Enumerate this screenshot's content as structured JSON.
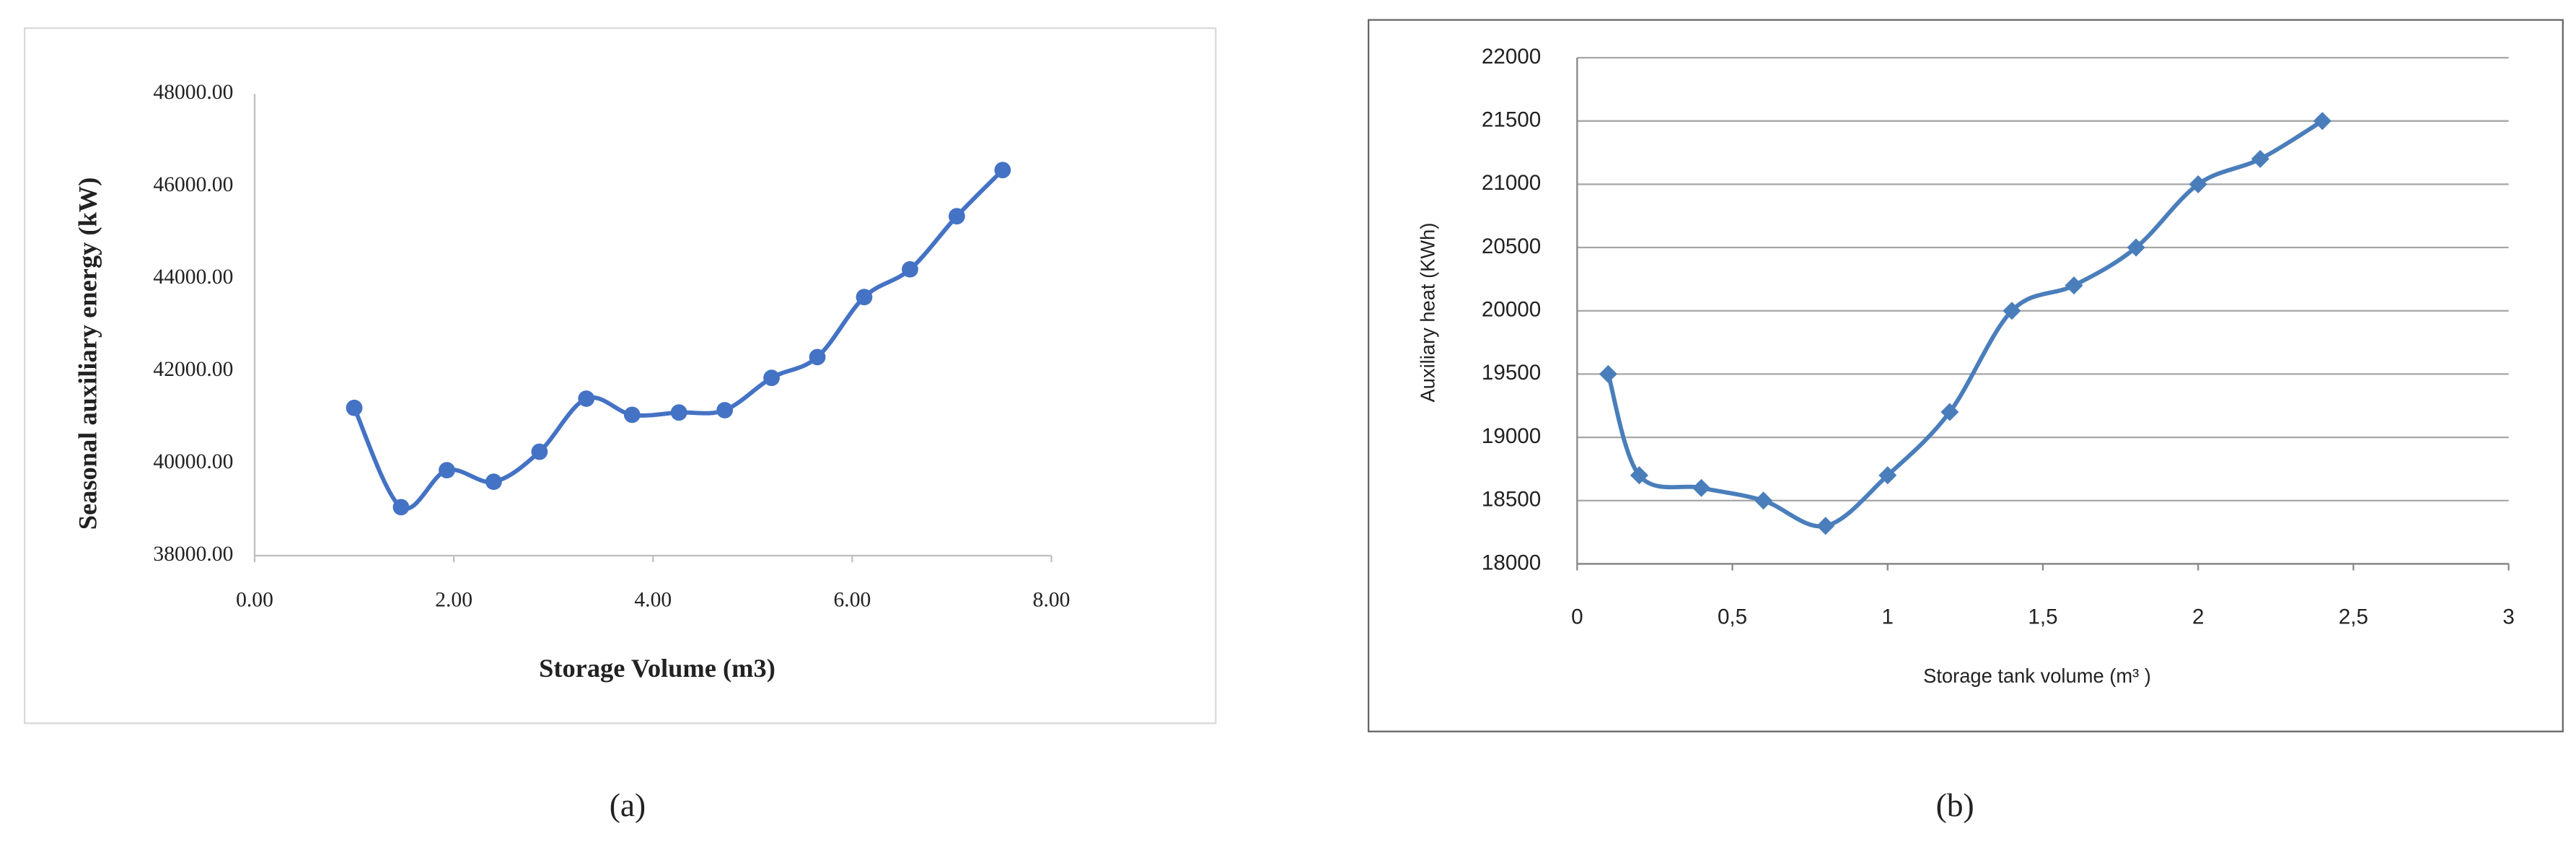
{
  "chart_data": [
    {
      "type": "line",
      "smooth": true,
      "marker": "circle",
      "grid": false,
      "color": "#4472c4",
      "x_label": "Storage Volume (m3)",
      "y_label": "Seasonal auxiliary energy (kW)",
      "caption": "(a)",
      "x": [
        1.0,
        1.47,
        1.93,
        2.4,
        2.86,
        3.33,
        3.79,
        4.26,
        4.72,
        5.19,
        5.65,
        6.12,
        6.58,
        7.05,
        7.51
      ],
      "values": [
        41200,
        39050,
        39850,
        39600,
        40250,
        41400,
        41050,
        41100,
        41150,
        41850,
        42300,
        43600,
        44200,
        45350,
        46350
      ],
      "xlim": [
        0,
        8
      ],
      "xticks": [
        {
          "value": 0,
          "label": "0.00"
        },
        {
          "value": 2,
          "label": "2.00"
        },
        {
          "value": 4,
          "label": "4.00"
        },
        {
          "value": 6,
          "label": "6.00"
        },
        {
          "value": 8,
          "label": "8.00"
        }
      ],
      "ylim": [
        38000,
        48000
      ],
      "yticks": [
        {
          "value": 38000,
          "label": "38000.00"
        },
        {
          "value": 40000,
          "label": "40000.00"
        },
        {
          "value": 42000,
          "label": "42000.00"
        },
        {
          "value": 44000,
          "label": "44000.00"
        },
        {
          "value": 46000,
          "label": "46000.00"
        },
        {
          "value": 48000,
          "label": "48000.00"
        }
      ]
    },
    {
      "type": "line",
      "smooth": true,
      "marker": "diamond",
      "grid": true,
      "color": "#4a7ebb",
      "x_label": "Storage tank volume (m³ )",
      "y_label": "Auxiliary heat  (KWh)",
      "caption": "(b)",
      "x": [
        0.1,
        0.2,
        0.4,
        0.6,
        0.8,
        1.0,
        1.2,
        1.4,
        1.6,
        1.8,
        2.0,
        2.2,
        2.4
      ],
      "values": [
        19500,
        18700,
        18600,
        18500,
        18300,
        18700,
        19200,
        20000,
        20200,
        20500,
        21000,
        21200,
        21500
      ],
      "xlim": [
        0,
        3
      ],
      "xticks": [
        0,
        {
          "value": 0.5,
          "label": "0,5"
        },
        1,
        {
          "value": 1.5,
          "label": "1,5"
        },
        2,
        {
          "value": 2.5,
          "label": "2,5"
        },
        3
      ],
      "ylim": [
        18000,
        22000
      ],
      "yticks": [
        18000,
        18500,
        19000,
        19500,
        20000,
        20500,
        21000,
        21500,
        22000
      ]
    }
  ]
}
